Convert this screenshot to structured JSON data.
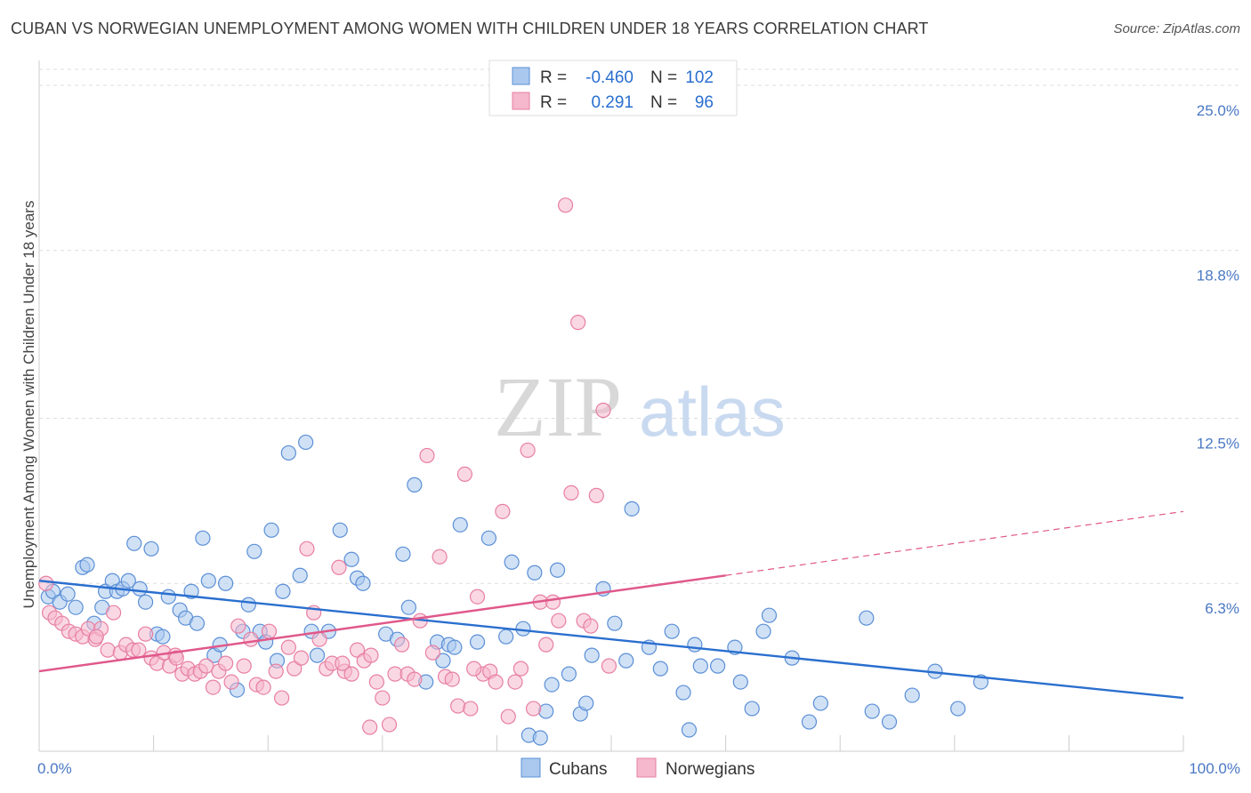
{
  "title": "CUBAN VS NORWEGIAN UNEMPLOYMENT AMONG WOMEN WITH CHILDREN UNDER 18 YEARS CORRELATION CHART",
  "source": "Source: ZipAtlas.com",
  "watermark": {
    "zip": "ZIP",
    "atlas": "atlas"
  },
  "colors": {
    "cubans_fill": "#aac8ee",
    "cubans_stroke": "#5b8fd6",
    "cubans_line": "#2a6fcf",
    "norwegians_fill": "#f5b8cc",
    "norwegians_stroke": "#e77fa2",
    "norwegians_line": "#e0588a",
    "tick_text": "#4a78c4",
    "grid": "#dddddd"
  },
  "legend": {
    "r_label": "R =",
    "n_label": "N =",
    "rows": [
      {
        "series": "Cubans",
        "r": "-0.460",
        "n": "102"
      },
      {
        "series": "Norwegians",
        "r": "0.291",
        "n": "96"
      }
    ]
  },
  "chart_data": {
    "type": "scatter",
    "title": "CUBAN VS NORWEGIAN UNEMPLOYMENT AMONG WOMEN WITH CHILDREN UNDER 18 YEARS CORRELATION CHART",
    "xlabel": "",
    "ylabel": "Unemployment Among Women with Children Under 18 years",
    "xlim": [
      0,
      100
    ],
    "ylim": [
      0,
      25.6
    ],
    "x_tick_labels": [
      "0.0%",
      "100.0%"
    ],
    "y_ticks": [
      6.3,
      12.5,
      18.8,
      25.0
    ],
    "y_tick_labels": [
      "6.3%",
      "12.5%",
      "18.8%",
      "25.0%"
    ],
    "grid": true,
    "legend_position": "top-center",
    "bottom_legend": [
      "Cubans",
      "Norwegians"
    ],
    "series": [
      {
        "name": "Cubans",
        "points": [
          [
            0.8,
            5.8
          ],
          [
            1.2,
            6.0
          ],
          [
            1.8,
            5.6
          ],
          [
            2.5,
            5.9
          ],
          [
            3.2,
            5.4
          ],
          [
            3.8,
            6.9
          ],
          [
            4.2,
            7.0
          ],
          [
            4.8,
            4.8
          ],
          [
            5.5,
            5.4
          ],
          [
            5.8,
            6.0
          ],
          [
            6.4,
            6.4
          ],
          [
            6.8,
            6.0
          ],
          [
            7.3,
            6.1
          ],
          [
            7.8,
            6.4
          ],
          [
            8.3,
            7.8
          ],
          [
            8.8,
            6.1
          ],
          [
            9.3,
            5.6
          ],
          [
            9.8,
            7.6
          ],
          [
            10.3,
            4.4
          ],
          [
            10.8,
            4.3
          ],
          [
            11.3,
            5.8
          ],
          [
            12.3,
            5.3
          ],
          [
            12.8,
            5.0
          ],
          [
            13.3,
            6.0
          ],
          [
            13.8,
            4.8
          ],
          [
            14.3,
            8.0
          ],
          [
            14.8,
            6.4
          ],
          [
            15.3,
            3.6
          ],
          [
            15.8,
            4.0
          ],
          [
            16.3,
            6.3
          ],
          [
            17.3,
            2.3
          ],
          [
            17.8,
            4.5
          ],
          [
            18.3,
            5.5
          ],
          [
            18.8,
            7.5
          ],
          [
            19.3,
            4.5
          ],
          [
            19.8,
            4.1
          ],
          [
            20.3,
            8.3
          ],
          [
            20.8,
            3.4
          ],
          [
            21.3,
            6.0
          ],
          [
            21.8,
            11.2
          ],
          [
            22.8,
            6.6
          ],
          [
            23.3,
            11.6
          ],
          [
            23.8,
            4.5
          ],
          [
            24.3,
            3.6
          ],
          [
            25.3,
            4.5
          ],
          [
            26.3,
            8.3
          ],
          [
            27.3,
            7.2
          ],
          [
            27.8,
            6.5
          ],
          [
            28.3,
            6.3
          ],
          [
            30.3,
            4.4
          ],
          [
            31.3,
            4.2
          ],
          [
            31.8,
            7.4
          ],
          [
            32.3,
            5.4
          ],
          [
            32.8,
            10.0
          ],
          [
            33.8,
            2.6
          ],
          [
            34.8,
            4.1
          ],
          [
            35.3,
            3.4
          ],
          [
            35.8,
            4.0
          ],
          [
            36.3,
            3.9
          ],
          [
            36.8,
            8.5
          ],
          [
            38.3,
            4.1
          ],
          [
            39.3,
            8.0
          ],
          [
            40.8,
            4.3
          ],
          [
            41.3,
            7.1
          ],
          [
            42.3,
            4.6
          ],
          [
            42.8,
            0.6
          ],
          [
            43.3,
            6.7
          ],
          [
            43.8,
            0.5
          ],
          [
            44.3,
            1.5
          ],
          [
            44.8,
            2.5
          ],
          [
            45.3,
            6.8
          ],
          [
            46.3,
            2.9
          ],
          [
            47.3,
            1.4
          ],
          [
            47.8,
            1.8
          ],
          [
            48.3,
            3.6
          ],
          [
            49.3,
            6.1
          ],
          [
            50.3,
            4.8
          ],
          [
            51.3,
            3.4
          ],
          [
            51.8,
            9.1
          ],
          [
            53.3,
            3.9
          ],
          [
            54.3,
            3.1
          ],
          [
            55.3,
            4.5
          ],
          [
            56.3,
            2.2
          ],
          [
            56.8,
            0.8
          ],
          [
            57.3,
            4.0
          ],
          [
            57.8,
            3.2
          ],
          [
            59.3,
            3.2
          ],
          [
            60.8,
            3.9
          ],
          [
            61.3,
            2.6
          ],
          [
            62.3,
            1.6
          ],
          [
            63.8,
            5.1
          ],
          [
            63.3,
            4.5
          ],
          [
            65.8,
            3.5
          ],
          [
            67.3,
            1.1
          ],
          [
            68.3,
            1.8
          ],
          [
            72.3,
            5.0
          ],
          [
            72.8,
            1.5
          ],
          [
            74.3,
            1.1
          ],
          [
            76.3,
            2.1
          ],
          [
            78.3,
            3.0
          ],
          [
            80.3,
            1.6
          ],
          [
            82.3,
            2.6
          ]
        ]
      },
      {
        "name": "Norwegians",
        "points": [
          [
            0.6,
            6.3
          ],
          [
            0.9,
            5.2
          ],
          [
            1.4,
            5.0
          ],
          [
            2.0,
            4.8
          ],
          [
            2.6,
            4.5
          ],
          [
            3.2,
            4.4
          ],
          [
            3.8,
            4.3
          ],
          [
            4.3,
            4.6
          ],
          [
            4.9,
            4.2
          ],
          [
            5.4,
            4.6
          ],
          [
            6.0,
            3.8
          ],
          [
            6.5,
            5.2
          ],
          [
            7.1,
            3.7
          ],
          [
            7.6,
            4.0
          ],
          [
            8.2,
            3.8
          ],
          [
            8.7,
            3.8
          ],
          [
            9.3,
            4.4
          ],
          [
            9.8,
            3.5
          ],
          [
            10.3,
            3.3
          ],
          [
            10.9,
            3.7
          ],
          [
            11.4,
            3.2
          ],
          [
            11.9,
            3.6
          ],
          [
            12.5,
            2.9
          ],
          [
            13.0,
            3.1
          ],
          [
            13.6,
            2.9
          ],
          [
            14.1,
            3.0
          ],
          [
            14.6,
            3.2
          ],
          [
            15.2,
            2.4
          ],
          [
            15.7,
            3.0
          ],
          [
            16.3,
            3.3
          ],
          [
            16.8,
            2.6
          ],
          [
            17.4,
            4.7
          ],
          [
            17.9,
            3.2
          ],
          [
            18.5,
            4.2
          ],
          [
            19.0,
            2.5
          ],
          [
            19.6,
            2.4
          ],
          [
            20.1,
            4.5
          ],
          [
            20.7,
            3.0
          ],
          [
            21.2,
            2.0
          ],
          [
            21.8,
            3.9
          ],
          [
            22.3,
            3.1
          ],
          [
            22.9,
            3.5
          ],
          [
            23.4,
            7.6
          ],
          [
            24.0,
            5.2
          ],
          [
            24.5,
            4.2
          ],
          [
            25.1,
            3.1
          ],
          [
            25.6,
            3.3
          ],
          [
            26.2,
            6.9
          ],
          [
            26.7,
            3.0
          ],
          [
            27.3,
            2.9
          ],
          [
            27.8,
            3.8
          ],
          [
            28.4,
            3.4
          ],
          [
            28.9,
            0.9
          ],
          [
            29.5,
            2.6
          ],
          [
            30.0,
            2.0
          ],
          [
            30.6,
            1.0
          ],
          [
            31.1,
            2.9
          ],
          [
            31.7,
            4.0
          ],
          [
            32.2,
            2.9
          ],
          [
            32.8,
            2.7
          ],
          [
            33.3,
            4.9
          ],
          [
            33.9,
            11.1
          ],
          [
            34.4,
            3.7
          ],
          [
            35.0,
            7.3
          ],
          [
            35.5,
            2.8
          ],
          [
            36.1,
            2.7
          ],
          [
            36.6,
            1.7
          ],
          [
            37.2,
            10.4
          ],
          [
            37.7,
            1.6
          ],
          [
            38.3,
            5.8
          ],
          [
            38.8,
            2.9
          ],
          [
            39.4,
            3.0
          ],
          [
            39.9,
            2.6
          ],
          [
            40.5,
            9.0
          ],
          [
            41.0,
            1.3
          ],
          [
            41.6,
            2.6
          ],
          [
            42.1,
            3.1
          ],
          [
            42.7,
            11.3
          ],
          [
            43.2,
            1.6
          ],
          [
            43.8,
            5.6
          ],
          [
            44.3,
            4.0
          ],
          [
            44.9,
            5.6
          ],
          [
            45.4,
            4.9
          ],
          [
            46.0,
            20.5
          ],
          [
            46.5,
            9.7
          ],
          [
            47.1,
            16.1
          ],
          [
            47.6,
            4.9
          ],
          [
            48.2,
            4.7
          ],
          [
            48.7,
            9.6
          ],
          [
            49.3,
            12.8
          ],
          [
            49.8,
            3.2
          ],
          [
            38.0,
            3.1
          ],
          [
            29.0,
            3.6
          ],
          [
            26.5,
            3.3
          ],
          [
            12.0,
            3.5
          ],
          [
            5.0,
            4.3
          ]
        ]
      }
    ],
    "trend_lines": [
      {
        "series": "Cubans",
        "x": [
          0,
          100
        ],
        "y": [
          6.4,
          2.0
        ],
        "style": "solid"
      },
      {
        "series": "Norwegians",
        "x": [
          0,
          60
        ],
        "y": [
          3.0,
          6.6
        ],
        "style": "solid"
      },
      {
        "series": "Norwegians",
        "x": [
          60,
          100
        ],
        "y": [
          6.6,
          9.0
        ],
        "style": "dashed"
      }
    ]
  }
}
